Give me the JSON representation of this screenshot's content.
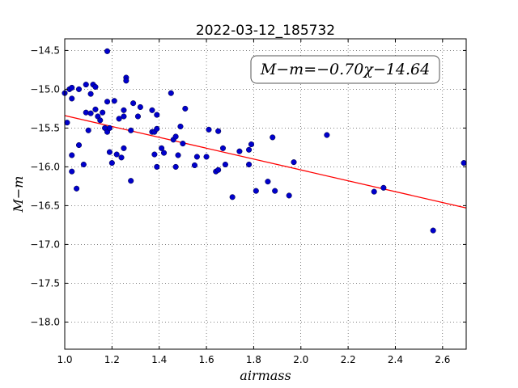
{
  "chart_data": {
    "type": "scatter",
    "title": "2022-03-12_185732",
    "xlabel": "airmass",
    "ylabel": "M−m",
    "xlim": [
      1.0,
      2.7
    ],
    "ylim": [
      -18.35,
      -14.35
    ],
    "xticks": [
      1.0,
      1.2,
      1.4,
      1.6,
      1.8,
      2.0,
      2.2,
      2.4,
      2.6
    ],
    "xtick_labels": [
      "1.0",
      "1.2",
      "1.4",
      "1.6",
      "1.8",
      "2.0",
      "2.2",
      "2.4",
      "2.6"
    ],
    "yticks": [
      -14.5,
      -15.0,
      -15.5,
      -16.0,
      -16.5,
      -17.0,
      -17.5,
      -18.0
    ],
    "ytick_labels": [
      "−14.5",
      "−15.0",
      "−15.5",
      "−16.0",
      "−16.5",
      "−17.0",
      "−17.5",
      "−18.0"
    ],
    "grid": true,
    "annotation": "M−m=−0.70χ−14.64",
    "fit": {
      "slope": -0.7,
      "intercept": -14.64,
      "color": "#ff0000"
    },
    "marker_color": "#0000cc",
    "points": [
      {
        "x": 1.0,
        "y": -15.05
      },
      {
        "x": 1.01,
        "y": -15.43
      },
      {
        "x": 1.02,
        "y": -15.0
      },
      {
        "x": 1.03,
        "y": -14.98
      },
      {
        "x": 1.03,
        "y": -15.12
      },
      {
        "x": 1.03,
        "y": -15.85
      },
      {
        "x": 1.03,
        "y": -16.06
      },
      {
        "x": 1.05,
        "y": -16.28
      },
      {
        "x": 1.06,
        "y": -15.72
      },
      {
        "x": 1.06,
        "y": -15.0
      },
      {
        "x": 1.08,
        "y": -15.97
      },
      {
        "x": 1.09,
        "y": -14.94
      },
      {
        "x": 1.09,
        "y": -15.3
      },
      {
        "x": 1.1,
        "y": -15.53
      },
      {
        "x": 1.11,
        "y": -15.31
      },
      {
        "x": 1.11,
        "y": -15.06
      },
      {
        "x": 1.12,
        "y": -14.94
      },
      {
        "x": 1.13,
        "y": -14.97
      },
      {
        "x": 1.13,
        "y": -15.26
      },
      {
        "x": 1.14,
        "y": -15.35
      },
      {
        "x": 1.15,
        "y": -15.4
      },
      {
        "x": 1.16,
        "y": -15.3
      },
      {
        "x": 1.17,
        "y": -15.5
      },
      {
        "x": 1.18,
        "y": -15.55
      },
      {
        "x": 1.18,
        "y": -15.16
      },
      {
        "x": 1.18,
        "y": -14.51
      },
      {
        "x": 1.19,
        "y": -15.5
      },
      {
        "x": 1.19,
        "y": -15.81
      },
      {
        "x": 1.2,
        "y": -15.95
      },
      {
        "x": 1.21,
        "y": -15.15
      },
      {
        "x": 1.22,
        "y": -15.84
      },
      {
        "x": 1.23,
        "y": -15.38
      },
      {
        "x": 1.24,
        "y": -15.88
      },
      {
        "x": 1.25,
        "y": -15.76
      },
      {
        "x": 1.25,
        "y": -15.35
      },
      {
        "x": 1.25,
        "y": -15.27
      },
      {
        "x": 1.26,
        "y": -14.85
      },
      {
        "x": 1.26,
        "y": -14.89
      },
      {
        "x": 1.28,
        "y": -15.53
      },
      {
        "x": 1.28,
        "y": -16.18
      },
      {
        "x": 1.29,
        "y": -15.18
      },
      {
        "x": 1.31,
        "y": -15.35
      },
      {
        "x": 1.32,
        "y": -15.23
      },
      {
        "x": 1.37,
        "y": -15.27
      },
      {
        "x": 1.37,
        "y": -15.55
      },
      {
        "x": 1.38,
        "y": -15.84
      },
      {
        "x": 1.38,
        "y": -15.55
      },
      {
        "x": 1.39,
        "y": -15.33
      },
      {
        "x": 1.39,
        "y": -15.51
      },
      {
        "x": 1.39,
        "y": -16.0
      },
      {
        "x": 1.41,
        "y": -15.76
      },
      {
        "x": 1.42,
        "y": -15.82
      },
      {
        "x": 1.45,
        "y": -15.05
      },
      {
        "x": 1.46,
        "y": -15.65
      },
      {
        "x": 1.47,
        "y": -15.61
      },
      {
        "x": 1.47,
        "y": -16.0
      },
      {
        "x": 1.48,
        "y": -15.85
      },
      {
        "x": 1.49,
        "y": -15.48
      },
      {
        "x": 1.5,
        "y": -15.7
      },
      {
        "x": 1.51,
        "y": -15.25
      },
      {
        "x": 1.55,
        "y": -15.98
      },
      {
        "x": 1.56,
        "y": -15.87
      },
      {
        "x": 1.6,
        "y": -15.87
      },
      {
        "x": 1.61,
        "y": -15.52
      },
      {
        "x": 1.64,
        "y": -16.06
      },
      {
        "x": 1.65,
        "y": -15.54
      },
      {
        "x": 1.65,
        "y": -16.04
      },
      {
        "x": 1.67,
        "y": -15.76
      },
      {
        "x": 1.68,
        "y": -15.97
      },
      {
        "x": 1.71,
        "y": -16.39
      },
      {
        "x": 1.74,
        "y": -15.8
      },
      {
        "x": 1.78,
        "y": -15.97
      },
      {
        "x": 1.78,
        "y": -15.78
      },
      {
        "x": 1.79,
        "y": -15.71
      },
      {
        "x": 1.81,
        "y": -16.31
      },
      {
        "x": 1.86,
        "y": -16.19
      },
      {
        "x": 1.88,
        "y": -15.62
      },
      {
        "x": 1.89,
        "y": -16.31
      },
      {
        "x": 1.95,
        "y": -16.37
      },
      {
        "x": 1.97,
        "y": -15.94
      },
      {
        "x": 2.11,
        "y": -15.59
      },
      {
        "x": 2.31,
        "y": -16.32
      },
      {
        "x": 2.35,
        "y": -16.27
      },
      {
        "x": 2.56,
        "y": -16.82
      },
      {
        "x": 2.69,
        "y": -15.95
      }
    ]
  }
}
